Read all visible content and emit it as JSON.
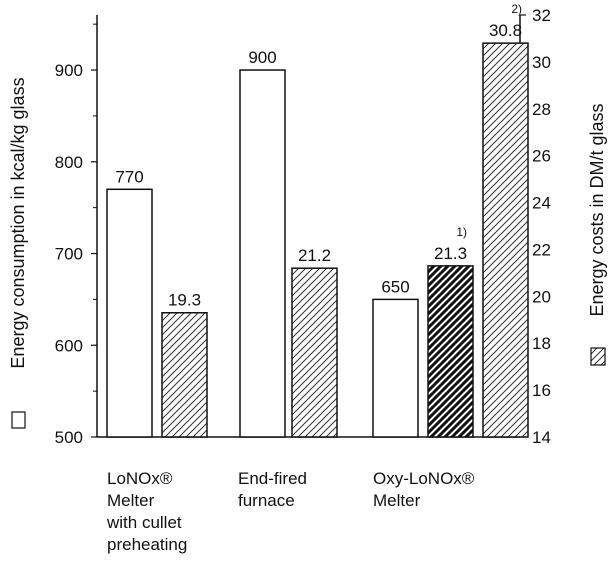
{
  "chart_data": {
    "type": "bar",
    "left_axis": {
      "label": "Energy consumption in kcal/kg glass",
      "ylim": [
        500,
        960
      ],
      "ticks": [
        500,
        600,
        700,
        800,
        900
      ]
    },
    "right_axis": {
      "label": "Energy costs in DM/t glass",
      "ylim": [
        14,
        32
      ],
      "ticks": [
        14,
        16,
        18,
        20,
        22,
        24,
        26,
        28,
        30,
        32
      ]
    },
    "categories": [
      {
        "lines": [
          "LoNOx®",
          "Melter",
          "with cullet",
          "preheating"
        ]
      },
      {
        "lines": [
          "End-fired",
          "furnace"
        ]
      },
      {
        "lines": [
          "Oxy-LoNOx®",
          "Melter"
        ]
      }
    ],
    "bars": [
      {
        "category": 0,
        "axis": "left",
        "value": 770,
        "label": "770",
        "style": "open",
        "note": ""
      },
      {
        "category": 0,
        "axis": "right",
        "value": 19.3,
        "label": "19.3",
        "style": "hatch",
        "note": ""
      },
      {
        "category": 1,
        "axis": "left",
        "value": 900,
        "label": "900",
        "style": "open",
        "note": ""
      },
      {
        "category": 1,
        "axis": "right",
        "value": 21.2,
        "label": "21.2",
        "style": "hatch",
        "note": ""
      },
      {
        "category": 2,
        "axis": "left",
        "value": 650,
        "label": "650",
        "style": "open",
        "note": ""
      },
      {
        "category": 2,
        "axis": "right",
        "value": 21.3,
        "label": "21.3",
        "style": "hatch-bold",
        "note": "1)"
      },
      {
        "category": 2,
        "axis": "right",
        "value": 30.8,
        "label": "30.8",
        "style": "hatch",
        "note": "2)"
      }
    ],
    "colors": {
      "ink": "#111111",
      "fill": "#ffffff"
    }
  }
}
